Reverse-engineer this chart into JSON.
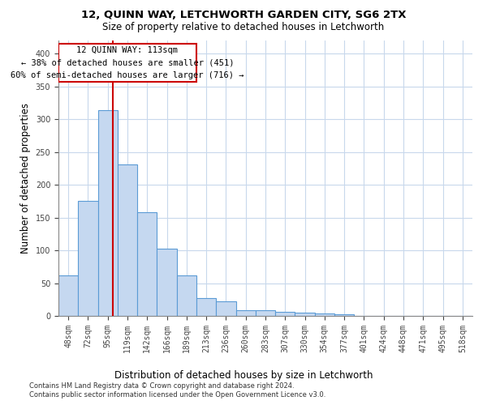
{
  "title1": "12, QUINN WAY, LETCHWORTH GARDEN CITY, SG6 2TX",
  "title2": "Size of property relative to detached houses in Letchworth",
  "xlabel": "Distribution of detached houses by size in Letchworth",
  "ylabel": "Number of detached properties",
  "bar_values": [
    62,
    175,
    314,
    231,
    158,
    102,
    62,
    27,
    22,
    9,
    9,
    6,
    5,
    4,
    2,
    0,
    0,
    0,
    0,
    0,
    0
  ],
  "bar_labels": [
    "48sqm",
    "72sqm",
    "95sqm",
    "119sqm",
    "142sqm",
    "166sqm",
    "189sqm",
    "213sqm",
    "236sqm",
    "260sqm",
    "283sqm",
    "307sqm",
    "330sqm",
    "354sqm",
    "377sqm",
    "401sqm",
    "424sqm",
    "448sqm",
    "471sqm",
    "495sqm",
    "518sqm"
  ],
  "bar_color": "#c5d8f0",
  "bar_edge_color": "#5b9bd5",
  "vline_index": 2.72,
  "vline_color": "#cc0000",
  "annotation_label": "12 QUINN WAY: 113sqm",
  "annotation_line1": "← 38% of detached houses are smaller (451)",
  "annotation_line2": "60% of semi-detached houses are larger (716) →",
  "annotation_box_color": "#ffffff",
  "annotation_box_edge": "#cc0000",
  "ylim_max": 420,
  "yticks": [
    0,
    50,
    100,
    150,
    200,
    250,
    300,
    350,
    400
  ],
  "footer1": "Contains HM Land Registry data © Crown copyright and database right 2024.",
  "footer2": "Contains public sector information licensed under the Open Government Licence v3.0.",
  "background_color": "#ffffff",
  "grid_color": "#c8d8ec"
}
